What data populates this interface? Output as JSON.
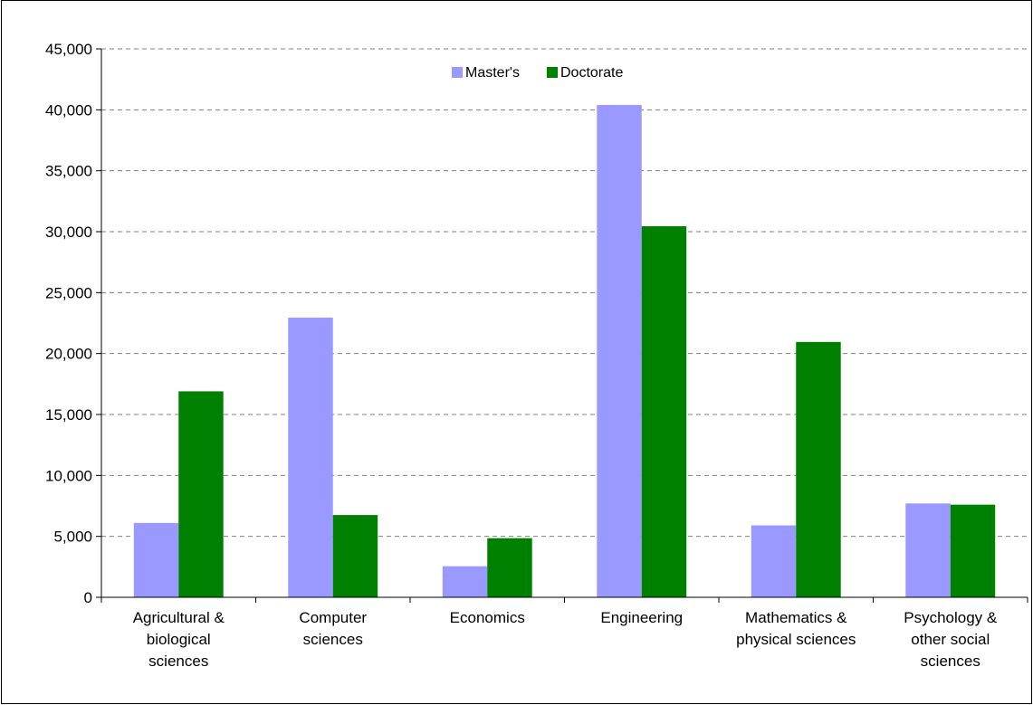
{
  "chart_data": {
    "type": "bar",
    "title": "",
    "xlabel": "",
    "ylabel": "",
    "categories": [
      [
        "Agricultural &",
        "biological",
        "sciences"
      ],
      [
        "Computer",
        "sciences"
      ],
      [
        "Economics"
      ],
      [
        "Engineering"
      ],
      [
        "Mathematics &",
        "physical sciences"
      ],
      [
        "Psychology &",
        "other social",
        "sciences"
      ]
    ],
    "series": [
      {
        "name": "Master's",
        "color": "#9999ff",
        "values": [
          6100,
          22950,
          2550,
          40400,
          5900,
          7700
        ]
      },
      {
        "name": "Doctorate",
        "color": "#008000",
        "values": [
          16900,
          6750,
          4850,
          30450,
          20950,
          7600
        ]
      }
    ],
    "ylim": [
      0,
      45000
    ],
    "yticks": [
      "0",
      "5,000",
      "10,000",
      "15,000",
      "20,000",
      "25,000",
      "30,000",
      "35,000",
      "40,000",
      "45,000"
    ],
    "ytick_step": 5000,
    "grid": true,
    "grid_style": "dashed",
    "legend": "top-center"
  }
}
